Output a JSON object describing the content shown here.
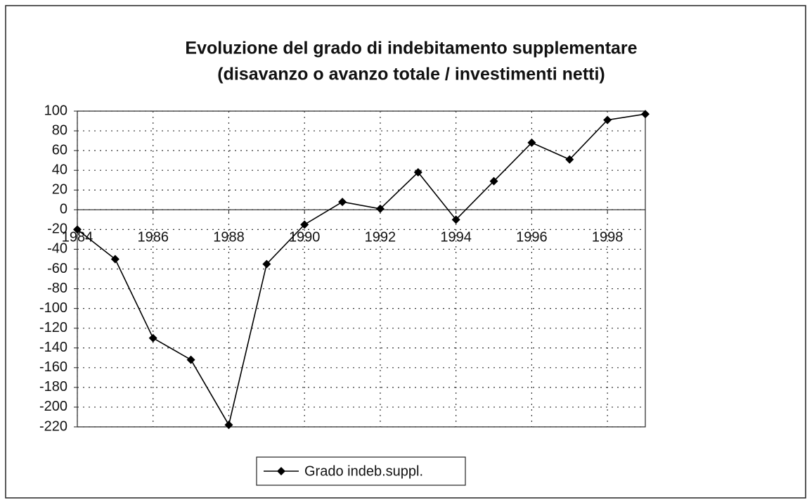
{
  "chart_data": {
    "type": "line",
    "title": [
      "Evoluzione del grado di indebitamento supplementare",
      "(disavanzo o avanzo totale / investimenti netti)"
    ],
    "x": [
      1984,
      1985,
      1986,
      1987,
      1988,
      1989,
      1990,
      1991,
      1992,
      1993,
      1994,
      1995,
      1996,
      1997,
      1998,
      1999
    ],
    "series": [
      {
        "name": "Grado indeb.suppl.",
        "color": "#000000",
        "values": [
          -20,
          -50,
          -130,
          -152,
          -218,
          -55,
          -15,
          8,
          1,
          38,
          -10,
          29,
          68,
          51,
          91,
          97
        ]
      }
    ],
    "xlim": [
      1984,
      1999
    ],
    "xticks": [
      1984,
      1986,
      1988,
      1990,
      1992,
      1994,
      1996,
      1998
    ],
    "ylim": [
      -220,
      100
    ],
    "yticks": [
      100,
      80,
      60,
      40,
      20,
      0,
      -20,
      -40,
      -60,
      -80,
      -100,
      -120,
      -140,
      -160,
      -180,
      -200,
      -220
    ],
    "grid": true,
    "legend": "bottom"
  }
}
